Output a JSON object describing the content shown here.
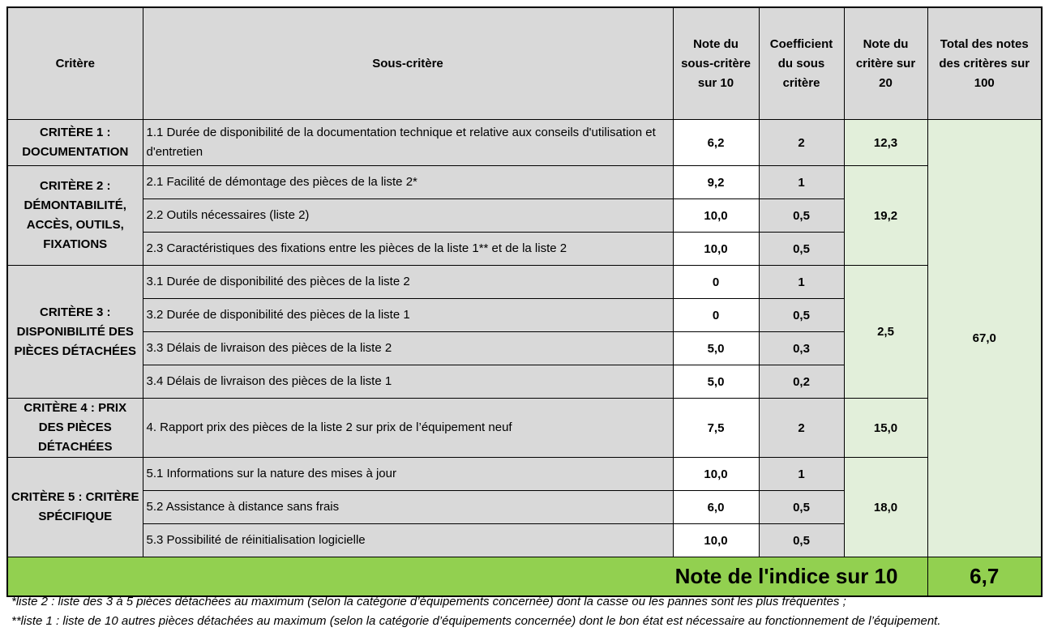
{
  "table": {
    "header": [
      "Critère",
      "Sous-critère",
      "Note du sous-critère sur 10",
      "Coefficient du sous critère",
      "Note du critère sur 20",
      "Total des notes des critères sur 100"
    ],
    "criteria": [
      {
        "name": "CRITÈRE 1 : DOCUMENTATION",
        "score": "12,3",
        "sub": [
          {
            "label": "1.1 Durée de disponibilité de la documentation technique et relative aux conseils d'utilisation et d'entretien",
            "note": "6,2",
            "coef": "2"
          }
        ]
      },
      {
        "name": "CRITÈRE 2 : DÉMONTABILITÉ, ACCÈS, OUTILS, FIXATIONS",
        "score": "19,2",
        "sub": [
          {
            "label": "2.1 Facilité de démontage des pièces de la liste 2*",
            "note": "9,2",
            "coef": "1"
          },
          {
            "label": "2.2 Outils nécessaires (liste 2)",
            "note": "10,0",
            "coef": "0,5"
          },
          {
            "label": "2.3 Caractéristiques des fixations entre les pièces de la liste 1** et de la liste 2",
            "note": "10,0",
            "coef": "0,5"
          }
        ]
      },
      {
        "name": "CRITÈRE 3 : DISPONIBILITÉ DES PIÈCES DÉTACHÉES",
        "score": "2,5",
        "sub": [
          {
            "label": "3.1 Durée de disponibilité des pièces de la liste 2",
            "note": "0",
            "coef": "1"
          },
          {
            "label": "3.2 Durée de disponibilité des pièces de la liste 1",
            "note": "0",
            "coef": "0,5"
          },
          {
            "label": "3.3 Délais de livraison des pièces de la liste 2",
            "note": "5,0",
            "coef": "0,3"
          },
          {
            "label": "3.4 Délais de livraison des pièces de la liste 1",
            "note": "5,0",
            "coef": "0,2"
          }
        ]
      },
      {
        "name": "CRITÈRE 4 : PRIX DES PIÈCES DÉTACHÉES",
        "score": "15,0",
        "sub": [
          {
            "label": "4. Rapport prix des pièces de la liste 2 sur prix de l’équipement neuf",
            "note": "7,5",
            "coef": "2"
          }
        ]
      },
      {
        "name": "CRITÈRE 5 : CRITÈRE SPÉCIFIQUE",
        "score": "18,0",
        "sub": [
          {
            "label": "5.1 Informations sur la nature des mises à jour",
            "note": "10,0",
            "coef": "1"
          },
          {
            "label": "5.2 Assistance à distance sans frais",
            "note": "6,0",
            "coef": "0,5"
          },
          {
            "label": "5.3 Possibilité de réinitialisation logicielle",
            "note": "10,0",
            "coef": "0,5"
          }
        ]
      }
    ],
    "total": "67,0"
  },
  "summary": {
    "label": "Note de l'indice sur 10",
    "value": "6,7"
  },
  "notes": [
    "*liste 2 : liste des 3 à 5 pièces détachées au maximum (selon la catégorie d’équipements concernée) dont la casse ou les pannes sont les plus fréquentes ;",
    "**liste 1 : liste de 10 autres pièces détachées au maximum (selon la catégorie d’équipements concernée) dont le bon état est nécessaire au fonctionnement de l’équipement."
  ]
}
